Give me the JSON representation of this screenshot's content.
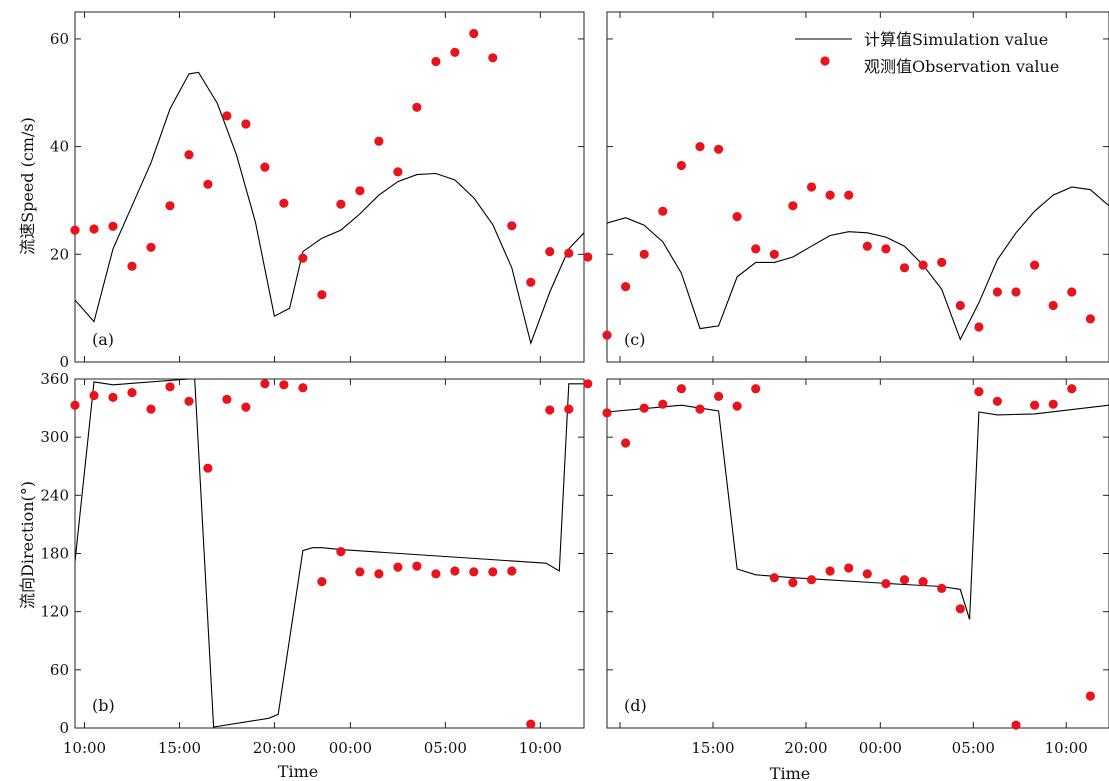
{
  "figure": {
    "ylabel_top": "流速Speed (cm/s)",
    "ylabel_bottom": "流向Direction(°)",
    "xlabel": "Time",
    "legend": {
      "simulation_label": "计算值Simulation value",
      "observation_label": "观测值Observation value"
    },
    "colors": {
      "line": "#000000",
      "points": "#e8141b",
      "axes": "#222222"
    }
  },
  "chart_data": [
    {
      "panel": "(a)",
      "type": "line",
      "xlabel": "",
      "ylabel": "流速Speed (cm/s)",
      "ylim": [
        0,
        65
      ],
      "yticks": [
        0,
        20,
        40,
        60
      ],
      "xlim": [
        9.5,
        36.3
      ],
      "xticks": [
        10,
        15,
        20,
        24,
        29,
        34
      ],
      "xtick_labels": [
        "",
        "",
        "",
        "",
        "",
        ""
      ],
      "series": [
        {
          "name": "计算值Simulation value",
          "kind": "line",
          "x": [
            9.5,
            10.5,
            11.5,
            13.5,
            14.5,
            15.5,
            16.0,
            17.0,
            18.0,
            19.0,
            20.0,
            20.8,
            21.5,
            22.5,
            23.5,
            24.5,
            25.5,
            26.5,
            27.5,
            28.5,
            29.5,
            30.5,
            31.5,
            32.5,
            33.5,
            34.5,
            35.5,
            36.3
          ],
          "y": [
            11.5,
            7.5,
            21.0,
            37.0,
            47.0,
            53.5,
            53.8,
            48.0,
            38.5,
            26.0,
            8.5,
            10.0,
            20.5,
            23.0,
            24.5,
            27.5,
            31.0,
            33.5,
            34.8,
            35.0,
            33.8,
            30.5,
            25.5,
            17.5,
            3.5,
            13.0,
            21.0,
            24.0
          ]
        },
        {
          "name": "观测值Observation value",
          "kind": "scatter",
          "x": [
            9.5,
            10.5,
            11.5,
            12.5,
            13.5,
            14.5,
            15.5,
            16.5,
            17.5,
            18.5,
            19.5,
            20.5,
            21.5,
            22.5,
            23.5,
            24.5,
            25.5,
            26.5,
            27.5,
            28.5,
            29.5,
            30.5,
            31.5,
            32.5,
            33.5,
            34.5,
            35.5,
            36.5
          ],
          "y": [
            24.5,
            24.7,
            25.2,
            17.8,
            21.3,
            29.0,
            38.5,
            33.0,
            45.7,
            44.2,
            36.2,
            29.5,
            19.3,
            12.5,
            29.3,
            31.8,
            41.0,
            35.3,
            47.3,
            55.8,
            57.5,
            61.0,
            56.5,
            25.3,
            14.8,
            20.5,
            20.2,
            19.5
          ]
        }
      ]
    },
    {
      "panel": "(c)",
      "type": "line",
      "xlabel": "",
      "ylabel": "",
      "ylim": [
        0,
        65
      ],
      "yticks": [
        0,
        20,
        40,
        60
      ],
      "xlim": [
        9.3,
        36.3
      ],
      "xticks": [
        10,
        15,
        20,
        24,
        29,
        34
      ],
      "xtick_labels": [
        "",
        "",
        "",
        "",
        "",
        ""
      ],
      "series": [
        {
          "name": "计算值Simulation value",
          "kind": "line",
          "x": [
            9.3,
            10.3,
            11.3,
            12.3,
            13.3,
            14.3,
            15.3,
            16.3,
            17.3,
            18.3,
            19.3,
            20.3,
            21.3,
            22.3,
            23.3,
            24.3,
            25.3,
            26.3,
            27.3,
            28.3,
            29.3,
            30.3,
            31.3,
            32.3,
            33.3,
            34.3,
            35.3,
            36.3
          ],
          "y": [
            25.8,
            26.8,
            25.4,
            22.3,
            16.5,
            6.2,
            6.7,
            15.8,
            18.5,
            18.5,
            19.5,
            21.5,
            23.5,
            24.2,
            24.0,
            23.2,
            21.5,
            18.0,
            13.5,
            4.2,
            11.0,
            19.0,
            24.0,
            28.0,
            31.0,
            32.5,
            32.0,
            29.0
          ]
        },
        {
          "name": "观测值Observation value",
          "kind": "scatter",
          "x": [
            9.3,
            10.3,
            11.3,
            12.3,
            13.3,
            14.3,
            15.3,
            16.3,
            17.3,
            18.3,
            19.3,
            20.3,
            21.3,
            22.3,
            23.3,
            24.3,
            25.3,
            26.3,
            27.3,
            28.3,
            29.3,
            30.3,
            31.3,
            32.3,
            33.3,
            34.3,
            35.3
          ],
          "y": [
            5.0,
            14.0,
            20.0,
            28.0,
            36.5,
            40.0,
            39.5,
            27.0,
            21.0,
            20.0,
            29.0,
            32.5,
            31.0,
            31.0,
            21.5,
            21.0,
            17.5,
            18.0,
            18.5,
            10.5,
            6.5,
            13.0,
            13.0,
            18.0,
            10.5,
            13.0,
            8.0
          ]
        }
      ]
    },
    {
      "panel": "(b)",
      "type": "line",
      "xlabel": "Time",
      "ylabel": "流向Direction(°)",
      "ylim": [
        0,
        360
      ],
      "yticks": [
        0,
        60,
        120,
        180,
        240,
        300,
        360
      ],
      "xlim": [
        9.5,
        36.3
      ],
      "xticks": [
        10,
        15,
        20,
        24,
        29,
        34
      ],
      "xtick_labels": [
        "10:00",
        "15:00",
        "20:00",
        "00:00",
        "05:00",
        "10:00"
      ],
      "series": [
        {
          "name": "计算值Simulation value",
          "kind": "line",
          "x": [
            9.5,
            10.5,
            11.5,
            15.5,
            15.8,
            16.8,
            19.7,
            20.2,
            21.5,
            22.0,
            22.5,
            23.5,
            34.3,
            35.0,
            35.5,
            36.3
          ],
          "y": [
            172,
            357,
            354,
            360,
            360,
            1,
            10,
            14,
            183,
            186,
            186,
            184,
            170,
            162,
            355,
            355
          ]
        },
        {
          "name": "观测值Observation value",
          "kind": "scatter",
          "x": [
            9.5,
            10.5,
            11.5,
            12.5,
            13.5,
            14.5,
            15.5,
            16.5,
            17.5,
            18.5,
            19.5,
            20.5,
            21.5,
            22.5,
            23.5,
            24.5,
            25.5,
            26.5,
            27.5,
            28.5,
            29.5,
            30.5,
            31.5,
            32.5,
            33.5,
            34.5,
            35.5,
            36.5
          ],
          "y": [
            333,
            343,
            341,
            346,
            329,
            352,
            337,
            268,
            339,
            331,
            355,
            354,
            351,
            151,
            182,
            161,
            159,
            166,
            167,
            159,
            162,
            161,
            161,
            162,
            4,
            328,
            329,
            355
          ]
        }
      ]
    },
    {
      "panel": "(d)",
      "type": "line",
      "xlabel": "Time",
      "ylabel": "",
      "ylim": [
        0,
        360
      ],
      "yticks": [
        0,
        60,
        120,
        180,
        240,
        300,
        360
      ],
      "xlim": [
        9.3,
        36.3
      ],
      "xticks": [
        10,
        15,
        20,
        24,
        29,
        34
      ],
      "xtick_labels": [
        "15:00",
        "20:00",
        "00:00",
        "05:00",
        "10:00"
      ],
      "xtick_label_positions": [
        15,
        20,
        24,
        29,
        34
      ],
      "series": [
        {
          "name": "计算值Simulation value",
          "kind": "line",
          "x": [
            9.3,
            13.3,
            14.3,
            15.3,
            16.3,
            17.3,
            19.3,
            25.3,
            27.3,
            28.3,
            28.8,
            29.3,
            30.3,
            32.3,
            36.3
          ],
          "y": [
            326,
            333,
            330,
            327,
            164,
            158,
            155,
            148,
            146,
            143,
            112,
            326,
            323,
            324,
            333
          ]
        },
        {
          "name": "观测值Observation value",
          "kind": "scatter",
          "x": [
            9.3,
            10.3,
            11.3,
            12.3,
            13.3,
            14.3,
            15.3,
            16.3,
            17.3,
            18.3,
            19.3,
            20.3,
            21.3,
            22.3,
            23.3,
            24.3,
            25.3,
            26.3,
            27.3,
            28.3,
            29.3,
            30.3,
            31.3,
            32.3,
            33.3,
            34.3,
            35.3
          ],
          "y": [
            325,
            294,
            330,
            334,
            350,
            329,
            342,
            332,
            350,
            155,
            150,
            153,
            162,
            165,
            159,
            149,
            153,
            151,
            144,
            123,
            347,
            337,
            3,
            333,
            334,
            350,
            33
          ]
        }
      ]
    }
  ]
}
